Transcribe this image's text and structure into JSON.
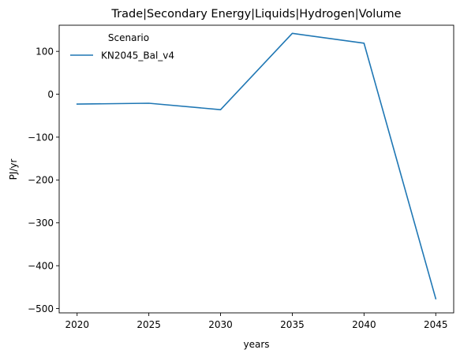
{
  "chart_data": {
    "type": "line",
    "title": "Trade|Secondary Energy|Liquids|Hydrogen|Volume",
    "xlabel": "years",
    "ylabel": "PJ/yr",
    "x": [
      2020,
      2025,
      2030,
      2035,
      2040,
      2045
    ],
    "x_ticks": [
      2020,
      2025,
      2030,
      2035,
      2040,
      2045
    ],
    "x_tick_labels": [
      "2020",
      "2025",
      "2030",
      "2035",
      "2040",
      "2045"
    ],
    "xlim": [
      2018.75,
      2046.25
    ],
    "y_ticks": [
      100,
      0,
      -100,
      -200,
      -300,
      -400,
      -500
    ],
    "y_tick_labels": [
      "100",
      "0",
      "−100",
      "−200",
      "−300",
      "−400",
      "−500"
    ],
    "ylim": [
      -510,
      161
    ],
    "grid": false,
    "legend": {
      "title": "Scenario",
      "placement": "top-left"
    },
    "series": [
      {
        "name": "KN2045_Bal_v4",
        "color": "#1f77b4",
        "values": [
          -23,
          -21,
          -36,
          142,
          119,
          -477
        ]
      }
    ]
  }
}
